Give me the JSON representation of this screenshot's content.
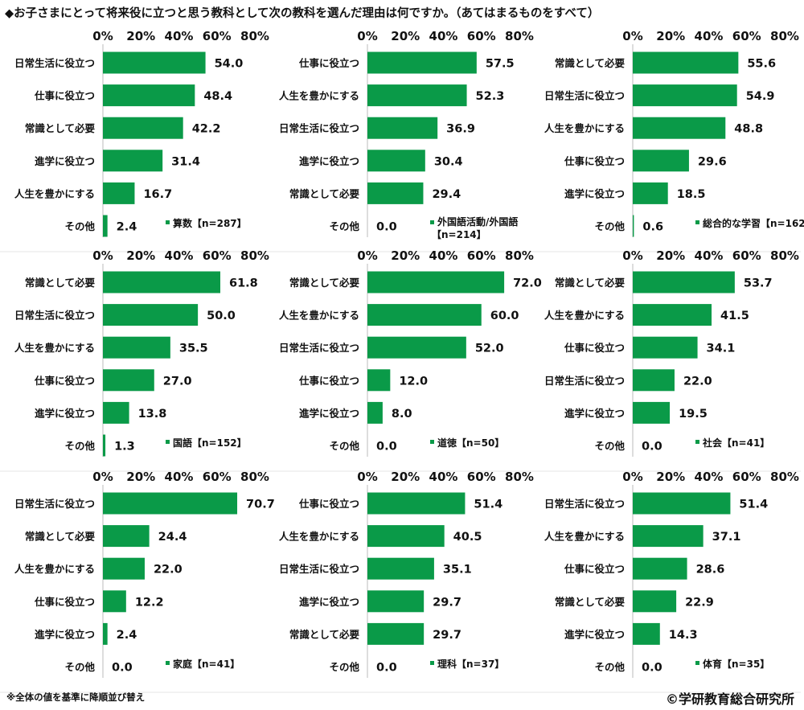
{
  "title": "◆お子さまにとって将来役に立つと思う教科として次の教科を選んだ理由は何ですか。（あてはまるものをすべて）",
  "footnote": "※全体の値を基準に降順並び替え",
  "copyright": "©学研教育総合研究所",
  "bar_color": "#0a9a48",
  "chart_data": [
    {
      "type": "bar",
      "orientation": "horizontal",
      "legend": "算数【n=287】",
      "categories": [
        "日常生活に役立つ",
        "仕事に役立つ",
        "常識として必要",
        "進学に役立つ",
        "人生を豊かにする",
        "その他"
      ],
      "values": [
        54.0,
        48.4,
        42.2,
        31.4,
        16.7,
        2.4
      ],
      "xticks": [
        "0%",
        "20%",
        "40%",
        "60%",
        "80%"
      ],
      "xlim": [
        0,
        80
      ]
    },
    {
      "type": "bar",
      "orientation": "horizontal",
      "legend": "外国語活動/外国語【n=214】",
      "categories": [
        "仕事に役立つ",
        "人生を豊かにする",
        "日常生活に役立つ",
        "進学に役立つ",
        "常識として必要",
        "その他"
      ],
      "values": [
        57.5,
        52.3,
        36.9,
        30.4,
        29.4,
        0.0
      ],
      "xticks": [
        "0%",
        "20%",
        "40%",
        "60%",
        "80%"
      ],
      "xlim": [
        0,
        80
      ]
    },
    {
      "type": "bar",
      "orientation": "horizontal",
      "legend": "総合的な学習【n=162】",
      "categories": [
        "常識として必要",
        "日常生活に役立つ",
        "人生を豊かにする",
        "仕事に役立つ",
        "進学に役立つ",
        "その他"
      ],
      "values": [
        55.6,
        54.9,
        48.8,
        29.6,
        18.5,
        0.6
      ],
      "xticks": [
        "0%",
        "20%",
        "40%",
        "60%",
        "80%"
      ],
      "xlim": [
        0,
        80
      ]
    },
    {
      "type": "bar",
      "orientation": "horizontal",
      "legend": "国語【n=152】",
      "categories": [
        "常識として必要",
        "日常生活に役立つ",
        "人生を豊かにする",
        "仕事に役立つ",
        "進学に役立つ",
        "その他"
      ],
      "values": [
        61.8,
        50.0,
        35.5,
        27.0,
        13.8,
        1.3
      ],
      "xticks": [
        "0%",
        "20%",
        "40%",
        "60%",
        "80%"
      ],
      "xlim": [
        0,
        80
      ]
    },
    {
      "type": "bar",
      "orientation": "horizontal",
      "legend": "道徳【n=50】",
      "categories": [
        "常識として必要",
        "人生を豊かにする",
        "日常生活に役立つ",
        "仕事に役立つ",
        "進学に役立つ",
        "その他"
      ],
      "values": [
        72.0,
        60.0,
        52.0,
        12.0,
        8.0,
        0.0
      ],
      "xticks": [
        "0%",
        "20%",
        "40%",
        "60%",
        "80%"
      ],
      "xlim": [
        0,
        80
      ]
    },
    {
      "type": "bar",
      "orientation": "horizontal",
      "legend": "社会【n=41】",
      "categories": [
        "常識として必要",
        "人生を豊かにする",
        "仕事に役立つ",
        "日常生活に役立つ",
        "進学に役立つ",
        "その他"
      ],
      "values": [
        53.7,
        41.5,
        34.1,
        22.0,
        19.5,
        0.0
      ],
      "xticks": [
        "0%",
        "20%",
        "40%",
        "60%",
        "80%"
      ],
      "xlim": [
        0,
        80
      ]
    },
    {
      "type": "bar",
      "orientation": "horizontal",
      "legend": "家庭【n=41】",
      "categories": [
        "日常生活に役立つ",
        "常識として必要",
        "人生を豊かにする",
        "仕事に役立つ",
        "進学に役立つ",
        "その他"
      ],
      "values": [
        70.7,
        24.4,
        22.0,
        12.2,
        2.4,
        0.0
      ],
      "xticks": [
        "0%",
        "20%",
        "40%",
        "60%",
        "80%"
      ],
      "xlim": [
        0,
        80
      ]
    },
    {
      "type": "bar",
      "orientation": "horizontal",
      "legend": "理科【n=37】",
      "categories": [
        "仕事に役立つ",
        "人生を豊かにする",
        "日常生活に役立つ",
        "進学に役立つ",
        "常識として必要",
        "その他"
      ],
      "values": [
        51.4,
        40.5,
        35.1,
        29.7,
        29.7,
        0.0
      ],
      "xticks": [
        "0%",
        "20%",
        "40%",
        "60%",
        "80%"
      ],
      "xlim": [
        0,
        80
      ]
    },
    {
      "type": "bar",
      "orientation": "horizontal",
      "legend": "体育【n=35】",
      "categories": [
        "日常生活に役立つ",
        "人生を豊かにする",
        "仕事に役立つ",
        "常識として必要",
        "進学に役立つ",
        "その他"
      ],
      "values": [
        51.4,
        37.1,
        28.6,
        22.9,
        14.3,
        0.0
      ],
      "xticks": [
        "0%",
        "20%",
        "40%",
        "60%",
        "80%"
      ],
      "xlim": [
        0,
        80
      ]
    }
  ]
}
